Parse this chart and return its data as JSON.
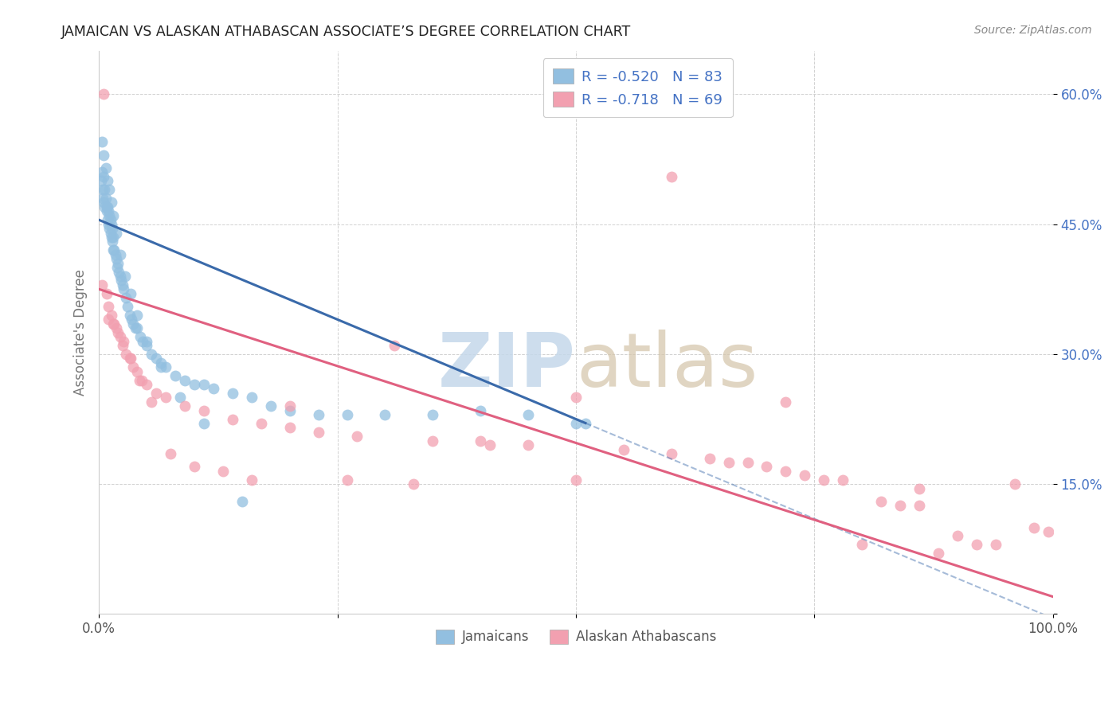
{
  "title": "JAMAICAN VS ALASKAN ATHABASCAN ASSOCIATE’S DEGREE CORRELATION CHART",
  "source": "Source: ZipAtlas.com",
  "ylabel": "Associate's Degree",
  "xlim": [
    0,
    1.0
  ],
  "ylim": [
    0,
    0.65
  ],
  "x_tick_positions": [
    0.0,
    0.25,
    0.5,
    0.75,
    1.0
  ],
  "x_tick_labels": [
    "0.0%",
    "",
    "",
    "",
    "100.0%"
  ],
  "y_tick_positions": [
    0.0,
    0.15,
    0.3,
    0.45,
    0.6
  ],
  "y_tick_labels": [
    "",
    "15.0%",
    "30.0%",
    "45.0%",
    "60.0%"
  ],
  "blue_color": "#92bfe0",
  "pink_color": "#f2a0b0",
  "blue_line_color": "#3a6aaa",
  "pink_line_color": "#e06080",
  "legend_text_color": "#4472c4",
  "R_blue": -0.52,
  "N_blue": 83,
  "R_pink": -0.718,
  "N_pink": 69,
  "blue_intercept": 0.455,
  "blue_slope": -0.46,
  "blue_line_xmax": 0.51,
  "pink_intercept": 0.375,
  "pink_slope": -0.355,
  "jamaicans_x": [
    0.002,
    0.003,
    0.004,
    0.004,
    0.005,
    0.005,
    0.006,
    0.006,
    0.007,
    0.008,
    0.008,
    0.009,
    0.009,
    0.01,
    0.01,
    0.011,
    0.011,
    0.012,
    0.012,
    0.013,
    0.013,
    0.014,
    0.014,
    0.015,
    0.015,
    0.016,
    0.017,
    0.018,
    0.019,
    0.02,
    0.021,
    0.022,
    0.023,
    0.025,
    0.026,
    0.028,
    0.03,
    0.032,
    0.034,
    0.036,
    0.038,
    0.04,
    0.043,
    0.046,
    0.05,
    0.055,
    0.06,
    0.065,
    0.07,
    0.08,
    0.09,
    0.1,
    0.11,
    0.12,
    0.14,
    0.16,
    0.18,
    0.2,
    0.23,
    0.26,
    0.3,
    0.35,
    0.4,
    0.45,
    0.5,
    0.51,
    0.003,
    0.005,
    0.007,
    0.009,
    0.011,
    0.013,
    0.015,
    0.018,
    0.022,
    0.027,
    0.033,
    0.04,
    0.05,
    0.065,
    0.085,
    0.11,
    0.15
  ],
  "jamaicans_y": [
    0.5,
    0.51,
    0.49,
    0.48,
    0.505,
    0.475,
    0.49,
    0.47,
    0.48,
    0.47,
    0.465,
    0.47,
    0.455,
    0.465,
    0.45,
    0.46,
    0.445,
    0.455,
    0.44,
    0.45,
    0.435,
    0.445,
    0.43,
    0.435,
    0.42,
    0.42,
    0.415,
    0.41,
    0.4,
    0.405,
    0.395,
    0.39,
    0.385,
    0.38,
    0.375,
    0.365,
    0.355,
    0.345,
    0.34,
    0.335,
    0.33,
    0.33,
    0.32,
    0.315,
    0.31,
    0.3,
    0.295,
    0.29,
    0.285,
    0.275,
    0.27,
    0.265,
    0.265,
    0.26,
    0.255,
    0.25,
    0.24,
    0.235,
    0.23,
    0.23,
    0.23,
    0.23,
    0.235,
    0.23,
    0.22,
    0.22,
    0.545,
    0.53,
    0.515,
    0.5,
    0.49,
    0.475,
    0.46,
    0.44,
    0.415,
    0.39,
    0.37,
    0.345,
    0.315,
    0.285,
    0.25,
    0.22,
    0.13
  ],
  "athabascans_x": [
    0.003,
    0.005,
    0.008,
    0.01,
    0.013,
    0.016,
    0.018,
    0.022,
    0.025,
    0.028,
    0.032,
    0.036,
    0.04,
    0.045,
    0.05,
    0.06,
    0.07,
    0.09,
    0.11,
    0.14,
    0.17,
    0.2,
    0.23,
    0.27,
    0.31,
    0.35,
    0.4,
    0.45,
    0.5,
    0.55,
    0.6,
    0.64,
    0.66,
    0.68,
    0.7,
    0.72,
    0.74,
    0.76,
    0.78,
    0.8,
    0.82,
    0.84,
    0.86,
    0.88,
    0.9,
    0.92,
    0.94,
    0.96,
    0.98,
    0.995,
    0.01,
    0.015,
    0.02,
    0.026,
    0.033,
    0.042,
    0.055,
    0.075,
    0.1,
    0.13,
    0.16,
    0.2,
    0.26,
    0.33,
    0.41,
    0.5,
    0.6,
    0.72,
    0.86
  ],
  "athabascans_y": [
    0.38,
    0.6,
    0.37,
    0.355,
    0.345,
    0.335,
    0.33,
    0.32,
    0.31,
    0.3,
    0.295,
    0.285,
    0.28,
    0.27,
    0.265,
    0.255,
    0.25,
    0.24,
    0.235,
    0.225,
    0.22,
    0.215,
    0.21,
    0.205,
    0.31,
    0.2,
    0.2,
    0.195,
    0.25,
    0.19,
    0.185,
    0.18,
    0.175,
    0.175,
    0.17,
    0.165,
    0.16,
    0.155,
    0.155,
    0.08,
    0.13,
    0.125,
    0.125,
    0.07,
    0.09,
    0.08,
    0.08,
    0.15,
    0.1,
    0.095,
    0.34,
    0.335,
    0.325,
    0.315,
    0.295,
    0.27,
    0.245,
    0.185,
    0.17,
    0.165,
    0.155,
    0.24,
    0.155,
    0.15,
    0.195,
    0.155,
    0.505,
    0.245,
    0.145
  ]
}
